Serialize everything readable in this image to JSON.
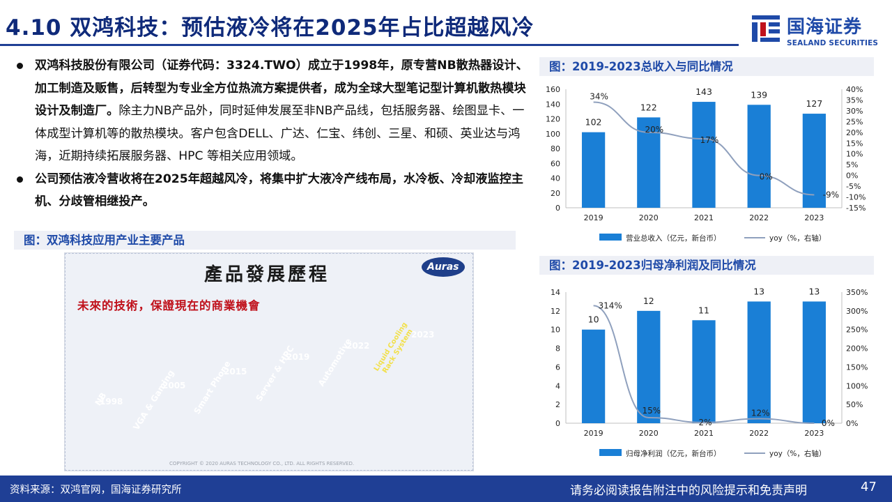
{
  "header": {
    "title": "4.10 双鸿科技：预估液冷将在2025年占比超越风冷",
    "logo_cn": "国海证券",
    "logo_en": "SEALAND SECURITIES"
  },
  "bullets": [
    {
      "bold": "双鸿科技股份有限公司（证券代码：3324.TWO）成立于1998年，原专营NB散热器设计、加工制造及贩售，后转型为专业全方位热流方案提供者，成为全球大型笔记型计算机散热模块设计及制造厂。",
      "text": "除主力NB产品外，同时延伸发展至非NB产品线，包括服务器、绘图显卡、一体成型计算机等的散热模块。客户包含DELL、广达、仁宝、纬创、三星、和硕、英业达与鸿海，近期持续拓展服务器、HPC 等相关应用领域。"
    },
    {
      "bold": "公司预估液冷营收将在2025年超越风冷，将集中扩大液冷产线布局，水冷板、冷却液监控主机、分歧管相继投产。",
      "text": ""
    }
  ],
  "figure_left": {
    "label": "图：双鸿科技应用产业主要产品",
    "image": {
      "title": "產品發展歷程",
      "subtitle": "未來的技術，保證現在的商業機會",
      "brand": "Auras",
      "copyright": "COPYRIGHT © 2020 AURAS TECHNOLOGY CO., LTD. ALL RIGHTS RESERVED.",
      "stages": [
        {
          "year": "1998",
          "label": "NB"
        },
        {
          "year": "2005",
          "label": "VGA & Gaming"
        },
        {
          "year": "2015",
          "label": "Smart Phone"
        },
        {
          "year": "2019",
          "label": "Server & HPC"
        },
        {
          "year": "2022",
          "label": "Automotive"
        },
        {
          "year": "2023",
          "label": "Liquid Cooling Rack System"
        }
      ]
    }
  },
  "footer": {
    "source": "资料来源：双鸿官网，国海证券研究所",
    "disclaimer": "请务必阅读报告附注中的风险提示和免责声明",
    "page": "47"
  },
  "colors": {
    "navy": "#1f3f95",
    "bar_blue": "#1a7fd6",
    "line_gray": "#8fa0bd",
    "label_bg": "#eef0f6",
    "label_text": "#1f4aa8"
  },
  "chart_data": [
    {
      "type": "bar",
      "title": "图：2019-2023总收入与同比情况",
      "categories": [
        "2019",
        "2020",
        "2021",
        "2022",
        "2023"
      ],
      "series": [
        {
          "name": "营业总收入（亿元，新台币）",
          "type": "bar",
          "axis": "left",
          "values": [
            102,
            122,
            143,
            139,
            127
          ],
          "labels": [
            "102",
            "122",
            "143",
            "139",
            "127"
          ]
        },
        {
          "name": "yoy（%，右轴）",
          "type": "line",
          "axis": "right",
          "values": [
            34,
            20,
            17,
            0,
            -9
          ],
          "labels": [
            "34%",
            "20%",
            "17%",
            "0%",
            "-9%"
          ]
        }
      ],
      "ylim": [
        0,
        160
      ],
      "yticks": [
        "0",
        "20",
        "40",
        "60",
        "80",
        "100",
        "120",
        "140",
        "160"
      ],
      "y2lim": [
        -15,
        40
      ],
      "y2ticks": [
        "-15%",
        "-10%",
        "-5%",
        "0%",
        "5%",
        "10%",
        "15%",
        "20%",
        "25%",
        "30%",
        "35%",
        "40%"
      ],
      "legend": "bottom",
      "grid": false
    },
    {
      "type": "bar",
      "title": "图：2019-2023归母净利润及同比情况",
      "categories": [
        "2019",
        "2020",
        "2021",
        "2022",
        "2023"
      ],
      "series": [
        {
          "name": "归母净利润（亿元，新台币）",
          "type": "bar",
          "axis": "left",
          "values": [
            10,
            12,
            11,
            13,
            13
          ],
          "labels": [
            "10",
            "12",
            "11",
            "13",
            "13"
          ]
        },
        {
          "name": "yoy（%，右轴）",
          "type": "line",
          "axis": "right",
          "values": [
            314,
            15,
            2,
            12,
            0
          ],
          "labels": [
            "314%",
            "15%",
            "2%",
            "12%",
            "0%"
          ]
        }
      ],
      "ylim": [
        0,
        14
      ],
      "yticks": [
        "0",
        "2",
        "4",
        "6",
        "8",
        "10",
        "12",
        "14"
      ],
      "y2lim": [
        0,
        350
      ],
      "y2ticks": [
        "0%",
        "50%",
        "100%",
        "150%",
        "200%",
        "250%",
        "300%",
        "350%"
      ],
      "legend": "bottom",
      "grid": false
    }
  ]
}
